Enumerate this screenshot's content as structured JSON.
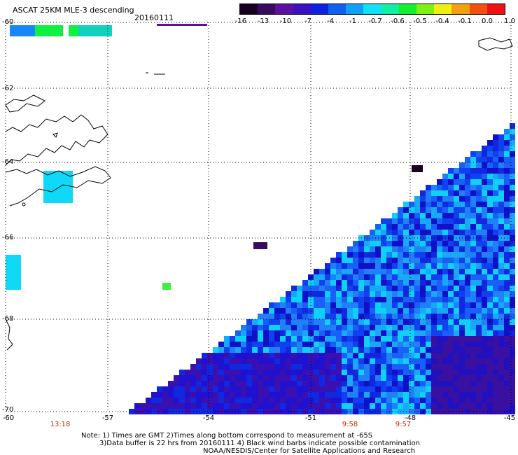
{
  "title": "ASCAT 25KM MLE-3 descending",
  "date": "20160111",
  "colorbar": {
    "labels": [
      "-16",
      "-13",
      "-10",
      "-7",
      "-4",
      "-1",
      "-0.7",
      "-0.6",
      "-0.5",
      "-0.4",
      "-0.1",
      "0.0",
      "1.0"
    ],
    "colors": [
      "#1a0020",
      "#3a0a60",
      "#5a10a0",
      "#3a10c0",
      "#1020e0",
      "#1060f0",
      "#10a0f8",
      "#10e0f8",
      "#10f0a0",
      "#10f030",
      "#80f010",
      "#f0f010",
      "#f0a010",
      "#f05010",
      "#f01010"
    ]
  },
  "lat_labels": [
    "-60",
    "-62",
    "-64",
    "-66",
    "-68",
    "-70"
  ],
  "lon_labels": [
    "-60",
    "-57",
    "-54",
    "-51",
    "-48",
    "-45"
  ],
  "time_labels": [
    "13:18",
    "9:58",
    "9:57"
  ],
  "notes": [
    "Note: 1) Times are GMT 2)Times along bottom correspond to measurement at -65S",
    "3)Data buffer is 22 hrs from 20160111 4) Black wind barbs indicate possible contamination",
    "NOAA/NESDIS/Center for Satellite Applications and Research"
  ],
  "map": {
    "lat_range": [
      -70,
      -60
    ],
    "lon_range": [
      -60,
      -45
    ],
    "grid": "dotted"
  }
}
